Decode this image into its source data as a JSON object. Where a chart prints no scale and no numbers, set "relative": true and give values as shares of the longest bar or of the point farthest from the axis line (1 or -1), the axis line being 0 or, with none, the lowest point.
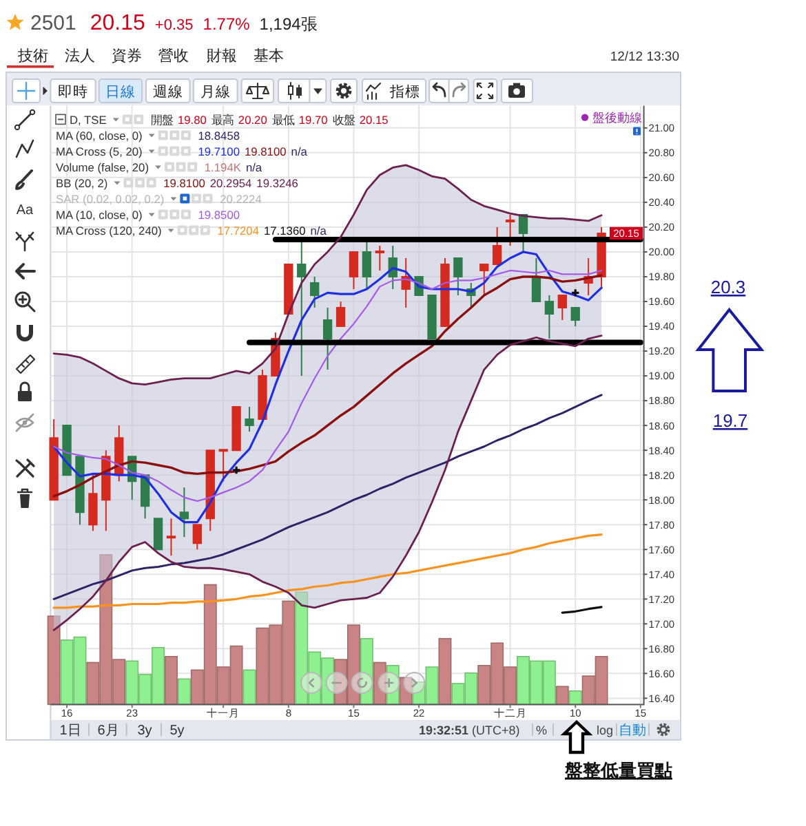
{
  "chart_data": [
    {
      "type": "candlestick",
      "title": "2501",
      "categories": [
        null,
        "16",
        null,
        null,
        null,
        null,
        "23",
        null,
        null,
        null,
        null,
        null,
        null,
        "十一月",
        null,
        null,
        null,
        null,
        "8",
        null,
        null,
        null,
        null,
        "15",
        null,
        null,
        null,
        null,
        "22",
        null,
        null,
        null,
        null,
        null,
        null,
        "十二月",
        null,
        null,
        null,
        null,
        "10",
        null,
        null,
        null,
        null,
        "15"
      ],
      "ohlc": [
        [
          18.0,
          18.65,
          18.0,
          18.5
        ],
        [
          18.6,
          18.6,
          18.2,
          18.2
        ],
        [
          18.35,
          18.35,
          17.8,
          17.9
        ],
        [
          17.8,
          18.2,
          17.75,
          18.05
        ],
        [
          18.0,
          18.4,
          17.75,
          18.35
        ],
        [
          18.2,
          18.6,
          18.15,
          18.5
        ],
        [
          18.35,
          18.35,
          18.0,
          18.15
        ],
        [
          18.2,
          18.2,
          17.85,
          17.95
        ],
        [
          17.85,
          17.85,
          17.6,
          17.6
        ],
        [
          17.7,
          17.85,
          17.55,
          17.7
        ],
        [
          17.9,
          18.1,
          17.7,
          17.85
        ],
        [
          17.65,
          17.8,
          17.6,
          17.8
        ],
        [
          17.85,
          18.4,
          17.75,
          18.4
        ],
        [
          18.4,
          18.4,
          18.15,
          18.4
        ],
        [
          18.4,
          18.75,
          18.4,
          18.75
        ],
        [
          18.65,
          18.75,
          18.55,
          18.6
        ],
        [
          18.65,
          19.05,
          18.65,
          19.0
        ],
        [
          19.0,
          19.35,
          19.0,
          19.3
        ],
        [
          19.5,
          19.9,
          19.5,
          19.9
        ],
        [
          19.9,
          20.1,
          19.0,
          19.8
        ],
        [
          19.75,
          19.8,
          19.55,
          19.65
        ],
        [
          19.45,
          19.55,
          19.05,
          19.3
        ],
        [
          19.4,
          19.6,
          19.4,
          19.55
        ],
        [
          19.8,
          20.0,
          19.7,
          20.0
        ],
        [
          20.0,
          20.1,
          19.7,
          19.8
        ],
        [
          20.0,
          20.05,
          19.85,
          20.0
        ],
        [
          19.95,
          20.05,
          19.7,
          19.8
        ],
        [
          19.7,
          19.95,
          19.55,
          19.8
        ],
        [
          19.8,
          19.8,
          19.65,
          19.65
        ],
        [
          19.65,
          19.65,
          19.3,
          19.3
        ],
        [
          19.4,
          19.95,
          19.4,
          19.9
        ],
        [
          19.95,
          19.95,
          19.65,
          19.8
        ],
        [
          19.7,
          19.75,
          19.55,
          19.65
        ],
        [
          19.85,
          19.9,
          19.65,
          19.9
        ],
        [
          19.9,
          20.2,
          19.9,
          20.05
        ],
        [
          20.25,
          20.3,
          20.05,
          20.25
        ],
        [
          20.3,
          20.3,
          20.0,
          20.15
        ],
        [
          19.8,
          19.95,
          19.6,
          19.6
        ],
        [
          19.6,
          19.65,
          19.3,
          19.5
        ],
        [
          19.55,
          19.65,
          19.45,
          19.65
        ],
        [
          19.55,
          19.55,
          19.4,
          19.45
        ],
        [
          19.75,
          19.95,
          19.65,
          19.8
        ],
        [
          19.8,
          20.2,
          19.7,
          20.15
        ],
        null,
        null,
        null
      ],
      "colors": [
        "#d42a20",
        "#2f7d4c",
        "#2f7d4c",
        "#d42a20",
        "#d42a20",
        "#d42a20",
        "#2f7d4c",
        "#2f7d4c",
        "#2f7d4c",
        "#d42a20",
        "#2f7d4c",
        "#d42a20",
        "#d42a20",
        "#d42a20",
        "#d42a20",
        "#2f7d4c",
        "#d42a20",
        "#d42a20",
        "#d42a20",
        "#2f7d4c",
        "#2f7d4c",
        "#2f7d4c",
        "#d42a20",
        "#d42a20",
        "#2f7d4c",
        "#d42a20",
        "#2f7d4c",
        "#d42a20",
        "#2f7d4c",
        "#2f7d4c",
        "#d42a20",
        "#2f7d4c",
        "#2f7d4c",
        "#d42a20",
        "#d42a20",
        "#d42a20",
        "#2f7d4c",
        "#2f7d4c",
        "#2f7d4c",
        "#d42a20",
        "#2f7d4c",
        "#d42a20",
        "#d42a20",
        null,
        null,
        null
      ],
      "series": [
        {
          "type": "line",
          "color": "#2c2466",
          "values": [
            17.2,
            17.24,
            17.28,
            17.32,
            17.35,
            17.39,
            17.43,
            17.45,
            17.46,
            17.48,
            17.49,
            17.51,
            17.53,
            17.56,
            17.6,
            17.64,
            17.68,
            17.73,
            17.78,
            17.82,
            17.86,
            17.9,
            17.95,
            18.0,
            18.04,
            18.09,
            18.13,
            18.18,
            18.22,
            18.26,
            18.3,
            18.35,
            18.39,
            18.43,
            18.48,
            18.52,
            18.57,
            18.61,
            18.66,
            18.7,
            18.75,
            18.8,
            18.8458,
            null,
            null,
            null
          ]
        },
        {
          "type": "line",
          "color": "#1f2fe0",
          "values": [
            18.43,
            18.3,
            18.19,
            18.21,
            18.21,
            18.2,
            18.2,
            18.18,
            18.05,
            17.9,
            17.82,
            17.82,
            17.98,
            18.17,
            18.3,
            18.41,
            18.63,
            18.93,
            19.2,
            19.45,
            19.62,
            19.67,
            19.66,
            19.66,
            19.7,
            19.78,
            19.87,
            19.84,
            19.72,
            19.7,
            19.7,
            19.7,
            19.68,
            19.75,
            19.88,
            19.95,
            20.0,
            19.98,
            19.82,
            19.68,
            19.65,
            19.61,
            19.71,
            null,
            null,
            null
          ]
        },
        {
          "type": "line",
          "color": "#8a1010",
          "values": [
            18.03,
            18.07,
            18.12,
            18.18,
            18.23,
            18.28,
            18.31,
            18.3,
            18.28,
            18.26,
            18.22,
            18.21,
            18.22,
            18.22,
            18.23,
            18.25,
            18.28,
            18.31,
            18.39,
            18.46,
            18.52,
            18.6,
            18.68,
            18.75,
            18.84,
            18.93,
            19.02,
            19.1,
            19.17,
            19.24,
            19.36,
            19.46,
            19.55,
            19.65,
            19.71,
            19.78,
            19.8,
            19.8,
            19.79,
            19.76,
            19.77,
            19.79,
            19.81,
            null,
            null,
            null
          ],
          "upper": [
            19.18,
            19.17,
            19.15,
            19.1,
            19.04,
            18.98,
            18.94,
            18.93,
            18.95,
            18.97,
            18.98,
            18.98,
            18.98,
            19.01,
            19.04,
            19.02,
            19.1,
            19.22,
            19.5,
            19.75,
            19.9,
            20.0,
            20.12,
            20.3,
            20.5,
            20.62,
            20.68,
            20.7,
            20.66,
            20.61,
            20.59,
            20.51,
            20.42,
            20.37,
            20.34,
            20.31,
            20.29,
            20.28,
            20.27,
            20.27,
            20.26,
            20.25,
            20.2954,
            null,
            null,
            null
          ],
          "lower": [
            16.95,
            17.03,
            17.12,
            17.22,
            17.35,
            17.5,
            17.62,
            17.66,
            17.57,
            17.5,
            17.46,
            17.45,
            17.45,
            17.44,
            17.42,
            17.4,
            17.34,
            17.3,
            17.25,
            17.15,
            17.13,
            17.16,
            17.19,
            17.2,
            17.21,
            17.25,
            17.38,
            17.55,
            17.74,
            17.98,
            18.24,
            18.55,
            18.8,
            19.05,
            19.17,
            19.25,
            19.28,
            19.31,
            19.28,
            19.26,
            19.24,
            19.3,
            19.3246,
            null,
            null,
            null
          ]
        },
        {
          "type": "line",
          "color": "#a35ae8",
          "values": [
            18.43,
            18.38,
            18.36,
            18.34,
            18.33,
            18.28,
            18.22,
            18.2,
            18.15,
            18.08,
            18.02,
            17.99,
            18.02,
            18.06,
            18.1,
            18.15,
            18.24,
            18.4,
            18.55,
            18.78,
            18.98,
            19.16,
            19.3,
            19.42,
            19.56,
            19.72,
            19.77,
            19.78,
            19.75,
            19.7,
            19.75,
            19.77,
            19.77,
            19.79,
            19.82,
            19.85,
            19.84,
            19.83,
            19.85,
            19.82,
            19.82,
            19.82,
            19.85,
            null,
            null,
            null
          ]
        },
        {
          "type": "line",
          "color": "#f7931e",
          "values": [
            17.13,
            17.13,
            17.14,
            17.14,
            17.15,
            17.15,
            17.16,
            17.16,
            17.16,
            17.17,
            17.17,
            17.18,
            17.18,
            17.19,
            17.2,
            17.22,
            17.23,
            17.25,
            17.27,
            17.28,
            17.3,
            17.31,
            17.33,
            17.34,
            17.36,
            17.38,
            17.4,
            17.41,
            17.43,
            17.45,
            17.47,
            17.49,
            17.51,
            17.53,
            17.55,
            17.57,
            17.6,
            17.62,
            17.65,
            17.67,
            17.69,
            17.71,
            17.7204,
            null,
            null,
            null
          ]
        },
        {
          "type": "line",
          "color": "#111111",
          "values": [
            null,
            null,
            null,
            null,
            null,
            null,
            null,
            null,
            null,
            null,
            null,
            null,
            null,
            null,
            null,
            null,
            null,
            null,
            null,
            null,
            null,
            null,
            null,
            null,
            null,
            null,
            null,
            null,
            null,
            null,
            null,
            null,
            null,
            null,
            null,
            null,
            null,
            null,
            null,
            17.09,
            17.1,
            17.12,
            17.136,
            null,
            null,
            null
          ]
        },
        {
          "type": "line",
          "color": "#000000",
          "values": [
            null,
            null,
            null,
            null,
            null,
            null,
            null,
            null,
            null,
            null,
            null,
            null,
            null,
            null,
            null,
            null,
            null,
            20.1,
            20.1,
            20.1,
            20.1,
            20.1,
            20.1,
            20.1,
            20.1,
            20.1,
            20.1,
            20.1,
            20.1,
            20.1,
            20.1,
            20.1,
            20.1,
            20.1,
            20.1,
            20.1,
            20.1,
            20.1,
            20.1,
            20.1,
            20.1,
            20.1,
            20.1,
            20.1,
            20.1,
            20.1
          ]
        },
        {
          "type": "line",
          "color": "#000000",
          "values": [
            null,
            null,
            null,
            null,
            null,
            null,
            null,
            null,
            null,
            null,
            null,
            null,
            null,
            null,
            null,
            19.27,
            19.27,
            19.27,
            19.27,
            19.27,
            19.27,
            19.27,
            19.27,
            19.27,
            19.27,
            19.27,
            19.27,
            19.27,
            19.27,
            19.27,
            19.27,
            19.27,
            19.27,
            19.27,
            19.27,
            19.27,
            19.27,
            19.27,
            19.27,
            19.27,
            19.27,
            19.27,
            19.27,
            19.27,
            19.27,
            19.27
          ]
        },
        {
          "type": "line",
          "color": "#6b2050",
          "values": [
            19.18,
            19.17,
            19.15,
            19.1,
            19.04,
            18.98,
            18.94,
            18.93,
            18.95,
            18.97,
            18.98,
            18.98,
            18.98,
            19.01,
            19.04,
            19.02,
            19.1,
            19.22,
            19.5,
            19.75,
            19.9,
            20.0,
            20.12,
            20.3,
            20.5,
            20.62,
            20.68,
            20.7,
            20.66,
            20.61,
            20.59,
            20.51,
            20.42,
            20.37,
            20.34,
            20.31,
            20.29,
            20.28,
            20.27,
            20.27,
            20.26,
            20.25,
            20.2954,
            null,
            null,
            null
          ]
        },
        {
          "type": "line",
          "color": "#6b2050",
          "values": [
            16.95,
            17.03,
            17.12,
            17.22,
            17.35,
            17.5,
            17.62,
            17.66,
            17.57,
            17.5,
            17.46,
            17.45,
            17.45,
            17.44,
            17.42,
            17.4,
            17.34,
            17.3,
            17.25,
            17.15,
            17.13,
            17.16,
            17.19,
            17.2,
            17.21,
            17.25,
            17.38,
            17.55,
            17.74,
            17.98,
            18.24,
            18.55,
            18.8,
            19.05,
            19.17,
            19.25,
            19.28,
            19.31,
            19.28,
            19.26,
            19.24,
            19.3,
            19.3246,
            null,
            null,
            null
          ]
        },
        {
          "type": "scatter",
          "color": "#111111",
          "marker": "cross",
          "values": [
            null,
            null,
            null,
            null,
            null,
            null,
            null,
            null,
            null,
            null,
            null,
            null,
            null,
            null,
            18.24,
            null,
            null,
            null,
            null,
            null,
            null,
            null,
            null,
            null,
            null,
            null,
            null,
            null,
            null,
            null,
            null,
            null,
            null,
            null,
            null,
            null,
            null,
            null,
            null,
            null,
            19.67,
            null,
            null,
            null,
            null,
            null
          ]
        }
      ],
      "ylim": [
        16.35,
        21.18
      ],
      "yticks": [
        {
          "value": 16.4,
          "label": "16.40"
        },
        {
          "value": 16.6,
          "label": "16.60"
        },
        {
          "value": 16.8,
          "label": "16.80"
        },
        {
          "value": 17,
          "label": "17.00"
        },
        {
          "value": 17.2,
          "label": "17.20"
        },
        {
          "value": 17.4,
          "label": "17.40"
        },
        {
          "value": 17.6,
          "label": "17.60"
        },
        {
          "value": 17.8,
          "label": "17.80"
        },
        {
          "value": 18,
          "label": "18.00"
        },
        {
          "value": 18.2,
          "label": "18.20"
        },
        {
          "value": 18.4,
          "label": "18.40"
        },
        {
          "value": 18.6,
          "label": "18.60"
        },
        {
          "value": 18.8,
          "label": "18.80"
        },
        {
          "value": 19,
          "label": "19.00"
        },
        {
          "value": 19.2,
          "label": "19.20"
        },
        {
          "value": 19.4,
          "label": "19.40"
        },
        {
          "value": 19.6,
          "label": "19.60"
        },
        {
          "value": 19.8,
          "label": "19.80"
        },
        {
          "value": 20,
          "label": "20.00"
        },
        {
          "value": 20.2,
          "label": "20.20"
        },
        {
          "value": 20.4,
          "label": "20.40"
        },
        {
          "value": 20.6,
          "label": "20.60"
        },
        {
          "value": 20.8,
          "label": "20.80"
        },
        {
          "value": 21,
          "label": "21.00"
        }
      ],
      "grid": true,
      "annotations": [
        "20.15",
        "+0.35",
        "1.77%",
        "1,194張",
        "技術",
        "法人",
        "資券",
        "營收",
        "財報",
        "基本",
        "12/12 13:30",
        "即時",
        "日線",
        "週線",
        "月線",
        "指標",
        "D, TSE",
        "開盤",
        "19.80",
        "最高",
        "20.20",
        "最低",
        "19.70",
        "收盤",
        "20.15",
        "MA (60, close, 0)",
        "18.8458",
        "MA Cross (5, 20)",
        "19.7100",
        "19.8100",
        "n/a",
        "Volume (false, 20)",
        "1.194K",
        "n/a",
        "BB (20, 2)",
        "19.8100",
        "20.2954",
        "19.3246",
        "SAR (0.02, 0.02, 0.2)",
        "20.2224",
        "MA (10, close, 0)",
        "19.8500",
        "MA Cross (120, 240)",
        "17.7204",
        "17.1360",
        "n/a",
        "盤後動線",
        {
          "text": "20.15",
          "y": 20.15
        },
        "1日",
        "6月",
        "3y",
        "5y",
        "**19:32:51** (UTC+8)",
        "%",
        "log",
        "自動",
        "Aa",
        "20.3",
        "19.7",
        "盤整低量買點"
      ]
    },
    {
      "type": "bar",
      "relative": true,
      "categories": [
        null,
        null,
        null,
        null,
        null,
        null,
        null,
        null,
        null,
        null,
        null,
        null,
        null,
        null,
        null,
        null,
        null,
        null,
        null,
        null,
        null,
        null,
        null,
        null,
        null,
        null,
        null,
        null,
        null,
        null,
        null,
        null,
        null,
        null,
        null,
        null,
        null,
        null,
        null,
        null,
        null,
        null,
        null,
        null,
        null,
        null
      ],
      "values": [
        0.59,
        0.43,
        0.45,
        0.28,
        1,
        0.3,
        0.29,
        0.2,
        0.38,
        0.32,
        0.17,
        0.23,
        0.8,
        0.25,
        0.39,
        0.23,
        0.51,
        0.53,
        0.69,
        0.75,
        0.35,
        0.31,
        0.3,
        0.53,
        0.44,
        0.28,
        0.26,
        0.18,
        0.15,
        0.25,
        0.44,
        0.14,
        0.21,
        0.26,
        0.41,
        0.25,
        0.32,
        0.29,
        0.29,
        0.12,
        0.09,
        0.19,
        0.32,
        null,
        null,
        null
      ],
      "colors": [
        "#c98585",
        "#8ff08f",
        "#8ff08f",
        "#c98585",
        "#c98585",
        "#c98585",
        "#8ff08f",
        "#8ff08f",
        "#8ff08f",
        "#c98585",
        "#8ff08f",
        "#c98585",
        "#c98585",
        "#c98585",
        "#c98585",
        "#8ff08f",
        "#c98585",
        "#c98585",
        "#c98585",
        "#8ff08f",
        "#8ff08f",
        "#8ff08f",
        "#c98585",
        "#c98585",
        "#8ff08f",
        "#c98585",
        "#8ff08f",
        "#c98585",
        "#8ff08f",
        "#8ff08f",
        "#c98585",
        "#8ff08f",
        "#8ff08f",
        "#c98585",
        "#c98585",
        "#c98585",
        "#8ff08f",
        "#8ff08f",
        "#8ff08f",
        "#c98585",
        "#8ff08f",
        "#c98585",
        "#c98585",
        null,
        null,
        null
      ]
    }
  ]
}
